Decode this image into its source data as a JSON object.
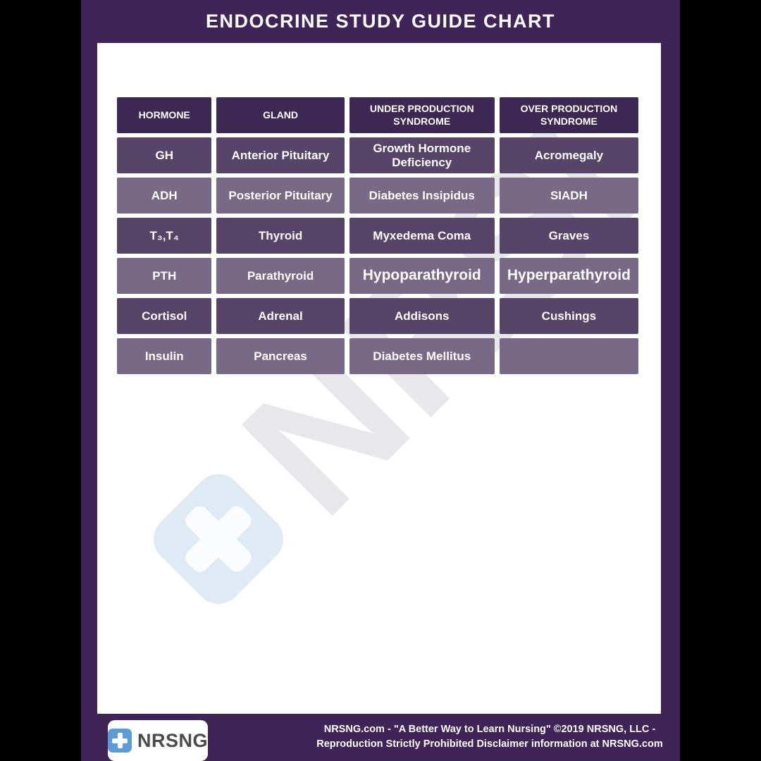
{
  "title": "ENDOCRINE STUDY GUIDE CHART",
  "table": {
    "headers": [
      "HORMONE",
      "GLAND",
      "UNDER PRODUCTION SYNDROME",
      "OVER PRODUCTION SYNDROME"
    ],
    "rows": [
      [
        "GH",
        "Anterior Pituitary",
        "Growth Hormone Deficiency",
        "Acromegaly"
      ],
      [
        "ADH",
        "Posterior Pituitary",
        "Diabetes Insipidus",
        "SIADH"
      ],
      [
        "T₃,T₄",
        "Thyroid",
        "Myxedema Coma",
        "Graves"
      ],
      [
        "PTH",
        "Parathyroid",
        "Hypoparathyroid",
        "Hyperparathyroid"
      ],
      [
        "Cortisol",
        "Adrenal",
        "Addisons",
        "Cushings"
      ],
      [
        "Insulin",
        "Pancreas",
        "Diabetes Mellitus",
        ""
      ]
    ]
  },
  "watermark": {
    "brand": "NRSNG"
  },
  "footer": {
    "brand": "NRSNG",
    "line1": "NRSNG.com - \"A Better Way to Learn Nursing\" ©2019 NRSNG, LLC -",
    "line2": "Reproduction Strictly Prohibited Disclaimer information at NRSNG.com"
  },
  "colors": {
    "frame_purple": "#412457",
    "header_cell": "#3c2852",
    "row_dark": "#574469",
    "row_light": "#786a87",
    "brand_blue": "#5b9bd8",
    "watermark_blue": "#dfeaf5",
    "watermark_gray": "#e8e8ec"
  }
}
